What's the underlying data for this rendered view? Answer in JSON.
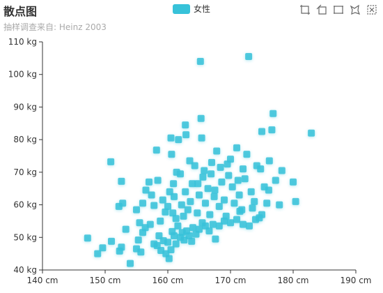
{
  "title": "散点图",
  "subtitle": "抽样调查来自: Heinz  2003",
  "legend": {
    "label": "女性",
    "color": "#37c2d9"
  },
  "toolbox": {
    "icons": [
      "zoom-in-icon",
      "zoom-reset-icon",
      "rect-select-icon",
      "lasso-select-icon",
      "clear-select-icon"
    ]
  },
  "chart_data": {
    "type": "scatter",
    "title": "散点图",
    "subtitle": "抽样调查来自: Heinz  2003",
    "xlim": [
      140,
      190
    ],
    "ylim": [
      40,
      110
    ],
    "x_ticks": [
      "140 cm",
      "150 cm",
      "160 cm",
      "170 cm",
      "180 cm",
      "190 cm"
    ],
    "y_ticks": [
      "40 kg",
      "50 kg",
      "60 kg",
      "70 kg",
      "80 kg",
      "90 kg",
      "100 kg",
      "110 kg"
    ],
    "grid": false,
    "legend_position": "top-center",
    "series": [
      {
        "name": "女性",
        "color": "#37c2d9",
        "points": [
          [
            147.2,
            49.8
          ],
          [
            148.8,
            45.0
          ],
          [
            149.6,
            46.8
          ],
          [
            151.0,
            48.8
          ],
          [
            152.3,
            45.8
          ],
          [
            152.6,
            47.0
          ],
          [
            154.0,
            42.0
          ],
          [
            155.0,
            46.5
          ],
          [
            155.3,
            49.2
          ],
          [
            155.7,
            45.5
          ],
          [
            156.0,
            51.5
          ],
          [
            156.4,
            53.0
          ],
          [
            157.2,
            54.0
          ],
          [
            157.8,
            48.0
          ],
          [
            158.3,
            47.5
          ],
          [
            158.6,
            50.5
          ],
          [
            158.9,
            46.0
          ],
          [
            159.3,
            49.0
          ],
          [
            159.7,
            45.0
          ],
          [
            160.0,
            48.5
          ],
          [
            160.2,
            43.5
          ],
          [
            160.5,
            46.2
          ],
          [
            160.7,
            51.8
          ],
          [
            161.0,
            50.5
          ],
          [
            161.3,
            48.0
          ],
          [
            161.6,
            53.5
          ],
          [
            162.0,
            50.0
          ],
          [
            162.3,
            51.5
          ],
          [
            162.6,
            49.2
          ],
          [
            163.0,
            52.0
          ],
          [
            163.4,
            50.5
          ],
          [
            163.8,
            48.8
          ],
          [
            164.0,
            53.0
          ],
          [
            164.5,
            51.0
          ],
          [
            165.0,
            52.5
          ],
          [
            165.5,
            54.5
          ],
          [
            166.0,
            53.5
          ],
          [
            166.6,
            52.0
          ],
          [
            167.2,
            54.0
          ],
          [
            167.6,
            49.5
          ],
          [
            168.2,
            53.5
          ],
          [
            169.0,
            55.0
          ],
          [
            170.0,
            54.5
          ],
          [
            171.0,
            55.5
          ],
          [
            172.0,
            54.0
          ],
          [
            173.0,
            53.5
          ],
          [
            174.0,
            55.5
          ],
          [
            175.0,
            57.0
          ],
          [
            173.5,
            59.0
          ],
          [
            171.5,
            58.0
          ],
          [
            150.9,
            73.2
          ],
          [
            152.2,
            59.5
          ],
          [
            152.6,
            67.2
          ],
          [
            152.8,
            60.5
          ],
          [
            153.3,
            52.5
          ],
          [
            155.0,
            58.5
          ],
          [
            155.5,
            54.5
          ],
          [
            156.0,
            60.5
          ],
          [
            156.5,
            64.5
          ],
          [
            157.0,
            67.0
          ],
          [
            157.4,
            63.0
          ],
          [
            157.8,
            59.8
          ],
          [
            158.2,
            76.8
          ],
          [
            158.8,
            55.0
          ],
          [
            159.2,
            61.5
          ],
          [
            159.6,
            57.8
          ],
          [
            160.0,
            59.5
          ],
          [
            160.3,
            64.0
          ],
          [
            160.5,
            80.5
          ],
          [
            160.6,
            75.5
          ],
          [
            160.8,
            57.5
          ],
          [
            161.0,
            62.5
          ],
          [
            161.3,
            55.8
          ],
          [
            161.7,
            80.0
          ],
          [
            162.0,
            69.5
          ],
          [
            162.2,
            60.0
          ],
          [
            162.5,
            56.5
          ],
          [
            162.8,
            84.5
          ],
          [
            162.9,
            81.5
          ],
          [
            163.2,
            58.5
          ],
          [
            163.6,
            61.0
          ],
          [
            163.9,
            66.5
          ],
          [
            164.3,
            72.0
          ],
          [
            164.7,
            57.5
          ],
          [
            165.0,
            63.0
          ],
          [
            165.2,
            104.0
          ],
          [
            165.3,
            86.5
          ],
          [
            165.4,
            80.5
          ],
          [
            165.6,
            68.5
          ],
          [
            166.0,
            60.5
          ],
          [
            166.4,
            65.0
          ],
          [
            166.7,
            57.0
          ],
          [
            167.0,
            73.0
          ],
          [
            167.4,
            62.5
          ],
          [
            167.8,
            76.5
          ],
          [
            168.2,
            59.5
          ],
          [
            168.6,
            67.0
          ],
          [
            169.0,
            61.5
          ],
          [
            169.3,
            56.5
          ],
          [
            169.7,
            69.0
          ],
          [
            170.0,
            74.0
          ],
          [
            170.3,
            65.5
          ],
          [
            170.6,
            60.5
          ],
          [
            171.0,
            77.5
          ],
          [
            171.4,
            63.0
          ],
          [
            171.8,
            58.5
          ],
          [
            172.3,
            68.0
          ],
          [
            172.6,
            75.5
          ],
          [
            172.9,
            105.5
          ],
          [
            173.3,
            64.0
          ],
          [
            173.8,
            61.0
          ],
          [
            174.2,
            72.0
          ],
          [
            174.6,
            56.0
          ],
          [
            175.0,
            82.5
          ],
          [
            175.4,
            65.5
          ],
          [
            175.8,
            60.5
          ],
          [
            176.2,
            73.5
          ],
          [
            176.6,
            83.0
          ],
          [
            176.8,
            88.0
          ],
          [
            177.2,
            67.5
          ],
          [
            177.8,
            60.0
          ],
          [
            178.2,
            70.5
          ],
          [
            180.0,
            67.0
          ],
          [
            180.4,
            61.0
          ],
          [
            182.9,
            82.0
          ],
          [
            171.2,
            67.5
          ],
          [
            165.8,
            70.5
          ],
          [
            168.4,
            71.5
          ],
          [
            163.5,
            73.5
          ],
          [
            161.4,
            70.0
          ],
          [
            164.8,
            66.5
          ],
          [
            166.9,
            69.5
          ],
          [
            169.5,
            72.5
          ],
          [
            162.8,
            64.0
          ],
          [
            160.9,
            66.5
          ],
          [
            158.4,
            67.5
          ],
          [
            174.8,
            71.0
          ],
          [
            176.1,
            64.5
          ],
          [
            172.0,
            71.0
          ],
          [
            167.5,
            64.5
          ]
        ]
      }
    ]
  }
}
